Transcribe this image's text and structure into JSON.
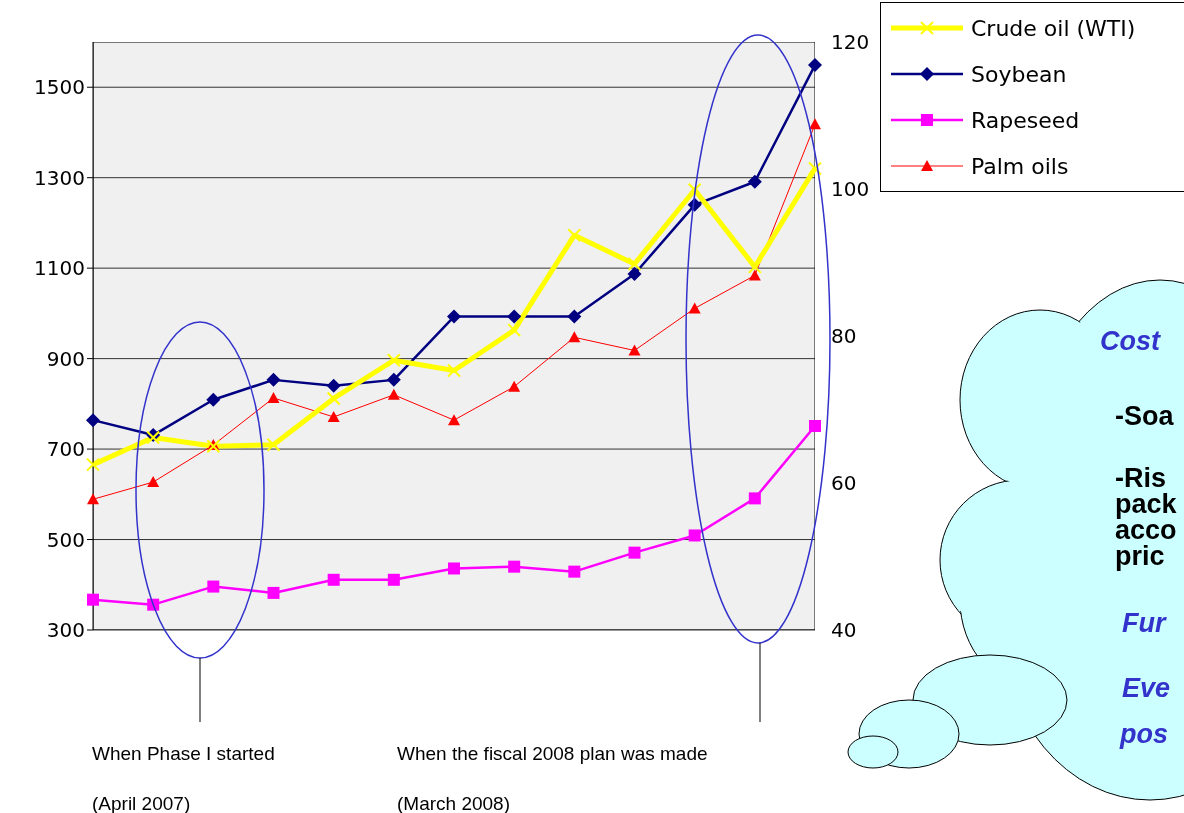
{
  "chart_data": {
    "type": "line",
    "categories": [
      null,
      null,
      null,
      null,
      null,
      null,
      null,
      null,
      null,
      null,
      null,
      null,
      null
    ],
    "series": [
      {
        "name": "Crude oil (WTI)",
        "color": "#ffff00",
        "axis": "y2",
        "marker": "cross",
        "values": [
          62.5,
          66.2,
          65,
          65.2,
          71.5,
          76.7,
          75.3,
          80.8,
          93.7,
          89.8,
          99.9,
          89.4,
          102.8
        ]
      },
      {
        "name": "Soybean",
        "color": "#000080",
        "marker": "diamond",
        "values": [
          764,
          731,
          809,
          853,
          840,
          853,
          993,
          993,
          993,
          1087,
          1240,
          1291,
          1549
        ]
      },
      {
        "name": "Rapeseed",
        "color": "#ff00ff",
        "marker": "square",
        "values": [
          367,
          356,
          396,
          382,
          411,
          411,
          436,
          440,
          429,
          471,
          509,
          591,
          751
        ]
      },
      {
        "name": "Palm oils",
        "color": "#ff0000",
        "marker": "triangle",
        "values": [
          589,
          627,
          709,
          813,
          771,
          820,
          764,
          838,
          947,
          918,
          1011,
          1084,
          1418
        ]
      }
    ],
    "ylim": [
      300,
      1600
    ],
    "yticks": [
      300,
      500,
      700,
      900,
      1100,
      1300,
      1500
    ],
    "y2lim": [
      40,
      120
    ],
    "y2ticks": [
      40,
      60,
      80,
      100,
      120
    ],
    "grid": "y",
    "legend": "top right",
    "annotations": [
      "When Phase I started",
      "(April 2007)",
      "When the fiscal 2008 plan was made",
      "(March 2008)",
      "Cost",
      "-Soa",
      "-Ris",
      "pack",
      "acco",
      "pric",
      "Fur",
      "Eve",
      "pos"
    ]
  }
}
